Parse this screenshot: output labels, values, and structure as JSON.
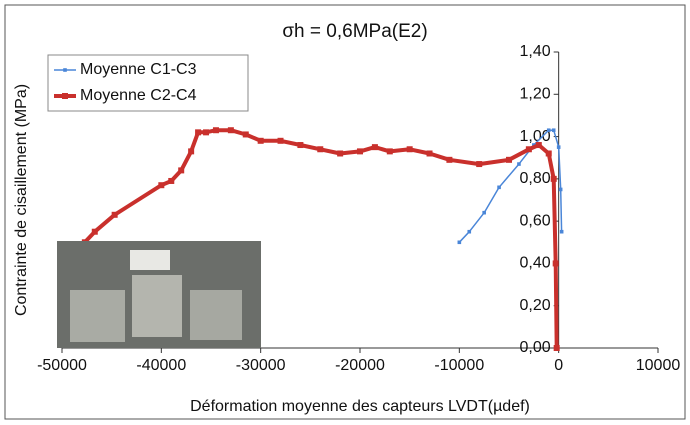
{
  "chart_data": {
    "type": "line",
    "title": "σh = 0,6MPa(E2)",
    "x_label": "Déformation moyenne des capteurs LVDT(µdef)",
    "y_label": "Contrainte de cisaillement (MPa)",
    "xlim": [
      -50000,
      10000
    ],
    "xticks": [
      -50000,
      -40000,
      -30000,
      -20000,
      -10000,
      0,
      10000
    ],
    "ylim": [
      0,
      1.4
    ],
    "yticks": [
      {
        "value": 0,
        "label": "0,00"
      },
      {
        "value": 0.2,
        "label": "0,20"
      },
      {
        "value": 0.4,
        "label": "0,40"
      },
      {
        "value": 0.6,
        "label": "0,60"
      },
      {
        "value": 0.8,
        "label": "0,80"
      },
      {
        "value": 1.0,
        "label": "1,00"
      },
      {
        "value": 1.2,
        "label": "1,20"
      },
      {
        "value": 1.4,
        "label": "1,40"
      }
    ],
    "legend": "upper left",
    "grid": false,
    "series": [
      {
        "name": "Moyenne C1-C3",
        "color": "#4a86d8",
        "x": [
          -10000,
          -9000,
          -7500,
          -6000,
          -4000,
          -2500,
          -1000,
          -500,
          0,
          200,
          300
        ],
        "values": [
          0.5,
          0.55,
          0.64,
          0.76,
          0.87,
          0.96,
          1.03,
          1.03,
          0.95,
          0.75,
          0.55
        ]
      },
      {
        "name": "Moyenne C2-C4",
        "color": "#c9302c",
        "x": [
          -47700,
          -46700,
          -44700,
          -40000,
          -39000,
          -38000,
          -37000,
          -36300,
          -35500,
          -34500,
          -33000,
          -31500,
          -30000,
          -28000,
          -26000,
          -24000,
          -22000,
          -20000,
          -18500,
          -17000,
          -15000,
          -13000,
          -11000,
          -8000,
          -5000,
          -3000,
          -2000,
          -1000,
          -500,
          -300,
          -200
        ],
        "values": [
          0.5,
          0.55,
          0.63,
          0.77,
          0.79,
          0.84,
          0.93,
          1.02,
          1.02,
          1.03,
          1.03,
          1.01,
          0.98,
          0.98,
          0.96,
          0.94,
          0.92,
          0.93,
          0.95,
          0.93,
          0.94,
          0.92,
          0.89,
          0.87,
          0.89,
          0.94,
          0.96,
          0.92,
          0.8,
          0.4,
          0.0
        ]
      }
    ]
  }
}
